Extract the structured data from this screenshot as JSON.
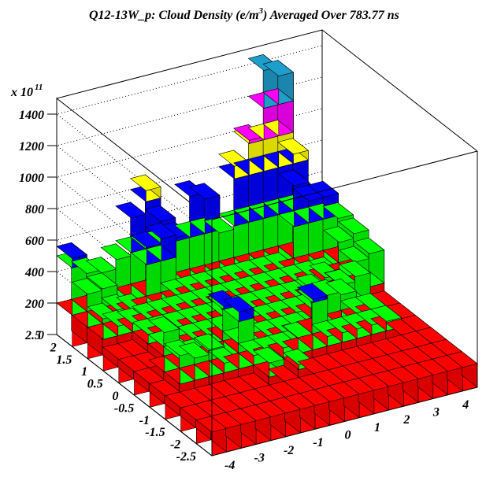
{
  "chart_data": {
    "type": "lego3d",
    "title": "Q12-13W_p: Cloud Density (e/m",
    "title_sup": "3",
    "title_tail": ") Averaged Over 783.77 ns",
    "z_multiplier": "x 10",
    "z_multiplier_exp": "11",
    "z_ticks": [
      "0",
      "200",
      "400",
      "600",
      "800",
      "1000",
      "1200",
      "1400"
    ],
    "z_range": [
      0,
      1500
    ],
    "x_ticks": [
      "-4",
      "-3",
      "-2",
      "-1",
      "0",
      "1",
      "2",
      "3",
      "4"
    ],
    "x_range": [
      -4.5,
      4.5
    ],
    "y_ticks": [
      "-2.5",
      "-2",
      "-1.5",
      "-1",
      "-0.5",
      "0",
      "0.5",
      "1",
      "1.5",
      "2",
      "2.5"
    ],
    "y_range": [
      -2.5,
      2.5
    ],
    "grid": true,
    "color_bands": [
      {
        "upto": 200,
        "color": "#ff0000"
      },
      {
        "upto": 500,
        "color": "#00ff00"
      },
      {
        "upto": 800,
        "color": "#0000ff"
      },
      {
        "upto": 1000,
        "color": "#ffff00"
      },
      {
        "upto": 1200,
        "color": "#ff00ff"
      },
      {
        "upto": 1500,
        "color": "#1e9ecb"
      }
    ],
    "floor_value": 150,
    "inner_value": 260,
    "columns": [
      {
        "x": -4.5,
        "y": 2.0,
        "v": 560
      },
      {
        "x": -4.5,
        "y": 1.5,
        "v": 410
      },
      {
        "x": -4.5,
        "y": 1.0,
        "v": 330
      },
      {
        "x": -4.0,
        "y": 2.0,
        "v": 440
      },
      {
        "x": -4.0,
        "y": 1.5,
        "v": 420
      },
      {
        "x": -4.0,
        "y": 1.0,
        "v": 260
      },
      {
        "x": -3.5,
        "y": 2.0,
        "v": 420
      },
      {
        "x": -3.5,
        "y": 1.0,
        "v": 250
      },
      {
        "x": -3.0,
        "y": 2.0,
        "v": 480
      },
      {
        "x": -3.0,
        "y": 1.5,
        "v": 240
      },
      {
        "x": -2.5,
        "y": 2.0,
        "v": 720
      },
      {
        "x": -2.5,
        "y": 1.5,
        "v": 610
      },
      {
        "x": -2.0,
        "y": 2.0,
        "v": 870
      },
      {
        "x": -2.0,
        "y": 1.5,
        "v": 640
      },
      {
        "x": -1.5,
        "y": 2.0,
        "v": 650
      },
      {
        "x": -1.0,
        "y": 2.0,
        "v": 520
      },
      {
        "x": -0.5,
        "y": 2.0,
        "v": 760
      },
      {
        "x": 0.0,
        "y": 2.0,
        "v": 720
      },
      {
        "x": 0.5,
        "y": 2.0,
        "v": 480
      },
      {
        "x": 1.0,
        "y": 2.0,
        "v": 880
      },
      {
        "x": 1.5,
        "y": 2.0,
        "v": 1020
      },
      {
        "x": 2.0,
        "y": 2.0,
        "v": 1440
      },
      {
        "x": 2.5,
        "y": 2.0,
        "v": 1380
      },
      {
        "x": 3.0,
        "y": 2.0,
        "v": 860
      },
      {
        "x": 3.5,
        "y": 2.0,
        "v": 560
      },
      {
        "x": 3.5,
        "y": 1.5,
        "v": 640
      },
      {
        "x": 4.0,
        "y": 2.0,
        "v": 520
      },
      {
        "x": 4.0,
        "y": 1.5,
        "v": 480
      },
      {
        "x": 4.0,
        "y": 1.0,
        "v": 460
      },
      {
        "x": 4.0,
        "y": 0.5,
        "v": 410
      },
      {
        "x": 3.5,
        "y": 1.0,
        "v": 430
      },
      {
        "x": 3.0,
        "y": 1.5,
        "v": 640
      },
      {
        "x": 2.5,
        "y": 1.5,
        "v": 760
      },
      {
        "x": -2.0,
        "y": -1.0,
        "v": 560
      },
      {
        "x": -2.0,
        "y": -0.5,
        "v": 520
      },
      {
        "x": -3.0,
        "y": -1.0,
        "v": 370
      },
      {
        "x": -4.0,
        "y": -0.5,
        "v": 450
      },
      {
        "x": -4.0,
        "y": -1.0,
        "v": 380
      },
      {
        "x": -3.5,
        "y": -1.0,
        "v": 340
      },
      {
        "x": -1.5,
        "y": -1.5,
        "v": 290
      },
      {
        "x": -0.5,
        "y": -1.5,
        "v": 230
      },
      {
        "x": 0.0,
        "y": -1.0,
        "v": 300
      },
      {
        "x": 0.5,
        "y": -1.0,
        "v": 520
      },
      {
        "x": 1.0,
        "y": -0.5,
        "v": 480
      },
      {
        "x": 1.5,
        "y": -0.5,
        "v": 420
      },
      {
        "x": 2.0,
        "y": -0.5,
        "v": 400
      },
      {
        "x": 2.5,
        "y": 0.0,
        "v": 360
      },
      {
        "x": 3.0,
        "y": 0.0,
        "v": 390
      },
      {
        "x": 3.5,
        "y": 0.5,
        "v": 380
      },
      {
        "x": 2.5,
        "y": 0.5,
        "v": 330
      }
    ]
  }
}
